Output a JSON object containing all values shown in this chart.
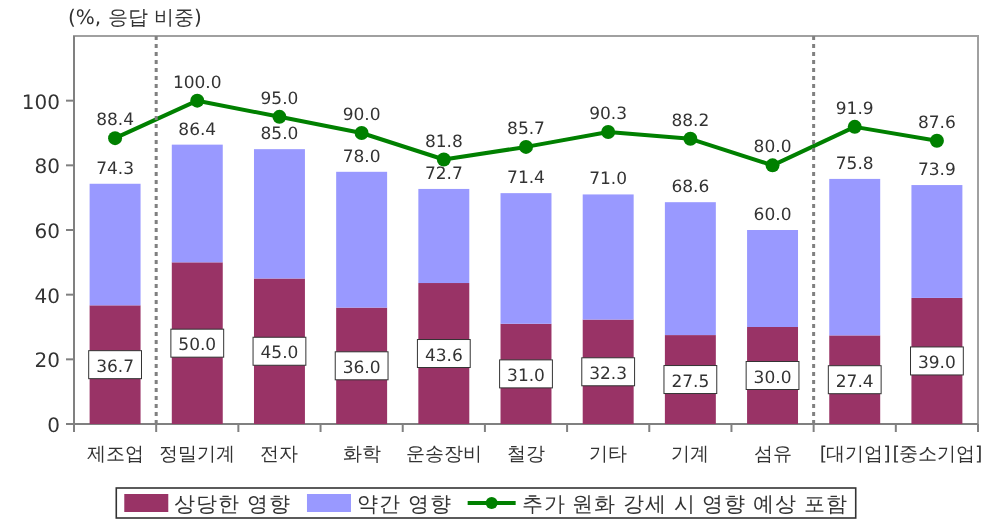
{
  "chart_data": {
    "type": "bar",
    "stacked": true,
    "ylabel": "(%, 응답 비중)",
    "categories": [
      "제조업",
      "정밀기계",
      "전자",
      "화학",
      "운송장비",
      "철강",
      "기타",
      "기계",
      "섬유",
      "[대기업]",
      "[중소기업]"
    ],
    "series": [
      {
        "name": "상당한 영향",
        "color": "#993366",
        "values": [
          36.7,
          50.0,
          45.0,
          36.0,
          43.6,
          31.0,
          32.3,
          27.5,
          30.0,
          27.4,
          39.0
        ],
        "value_labels": [
          "36.7",
          "50.0",
          "45.0",
          "36.0",
          "43.6",
          "31.0",
          "32.3",
          "27.5",
          "30.0",
          "27.4",
          "39.0"
        ]
      },
      {
        "name": "약간 영향",
        "color": "#9999ff",
        "values": [
          37.6,
          36.4,
          40.0,
          42.0,
          29.1,
          40.4,
          38.7,
          41.1,
          30.0,
          48.4,
          34.9
        ]
      },
      {
        "name": "추가 원화 강세 시 영향 예상 포함",
        "type": "line",
        "color": "#008000",
        "marker": "circle",
        "values": [
          88.4,
          100.0,
          95.0,
          90.0,
          81.8,
          85.7,
          90.3,
          88.2,
          80.0,
          91.9,
          87.6
        ],
        "value_labels": [
          "88.4",
          "100.0",
          "95.0",
          "90.0",
          "81.8",
          "85.7",
          "90.3",
          "88.2",
          "80.0",
          "91.9",
          "87.6"
        ]
      }
    ],
    "totals": [
      "74.3",
      "86.4",
      "85.0",
      "78.0",
      "72.7",
      "71.4",
      "71.0",
      "68.6",
      "60.0",
      "75.8",
      "73.9"
    ],
    "ylim": [
      0,
      120
    ],
    "yticks": [
      0,
      20,
      40,
      60,
      80,
      100
    ],
    "grid": false,
    "legend": "bottom"
  }
}
